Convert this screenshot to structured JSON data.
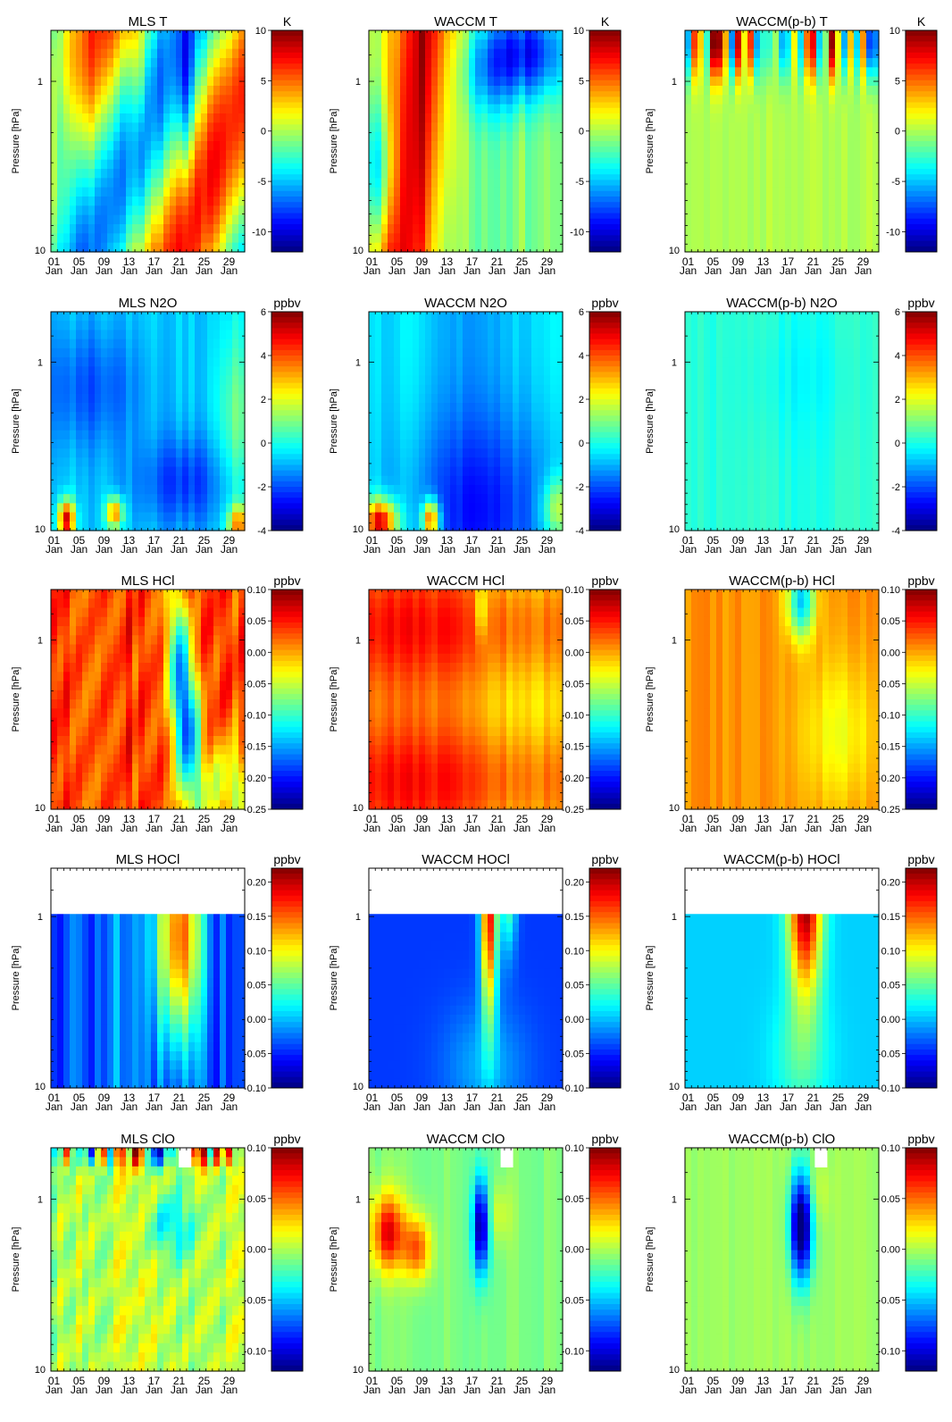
{
  "figure": {
    "colors": {
      "jet": [
        "#00007f",
        "#0000ff",
        "#007fff",
        "#00ffff",
        "#7fff7f",
        "#ffff00",
        "#ff7f00",
        "#ff0000",
        "#7f0000"
      ],
      "missing": "#ffffff"
    }
  },
  "chart_data": [
    {
      "type": "heatmap",
      "title": "MLS T",
      "ylabel": "Pressure [hPa]",
      "unit": "K",
      "clim": [
        -12,
        10
      ],
      "cbar_ticks": [
        "10",
        "5",
        "0",
        "-5",
        "-10"
      ],
      "cbar_values": [
        10,
        5,
        0,
        -5,
        -10
      ],
      "yticks": [
        "1",
        "10"
      ],
      "xticks": [
        "01\nJan",
        "05\nJan",
        "09\nJan",
        "13\nJan",
        "17\nJan",
        "21\nJan",
        "25\nJan",
        "29\nJan"
      ]
    },
    {
      "type": "heatmap",
      "title": "WACCM T",
      "ylabel": "Pressure [hPa]",
      "unit": "K",
      "clim": [
        -12,
        10
      ],
      "cbar_ticks": [
        "10",
        "5",
        "0",
        "-5",
        "-10"
      ],
      "cbar_values": [
        10,
        5,
        0,
        -5,
        -10
      ],
      "yticks": [
        "1",
        "10"
      ],
      "xticks": [
        "01\nJan",
        "05\nJan",
        "09\nJan",
        "13\nJan",
        "17\nJan",
        "21\nJan",
        "25\nJan",
        "29\nJan"
      ]
    },
    {
      "type": "heatmap",
      "title": "WACCM(p-b) T",
      "ylabel": "Pressure [hPa]",
      "unit": "K",
      "clim": [
        -12,
        10
      ],
      "cbar_ticks": [
        "10",
        "5",
        "0",
        "-5",
        "-10"
      ],
      "cbar_values": [
        10,
        5,
        0,
        -5,
        -10
      ],
      "yticks": [
        "1",
        "10"
      ],
      "xticks": [
        "01\nJan",
        "05\nJan",
        "09\nJan",
        "13\nJan",
        "17\nJan",
        "21\nJan",
        "25\nJan",
        "29\nJan"
      ]
    },
    {
      "type": "heatmap",
      "title": "MLS N2O",
      "ylabel": "Pressure [hPa]",
      "unit": "ppbv",
      "clim": [
        -4,
        6
      ],
      "cbar_ticks": [
        "6",
        "4",
        "2",
        "0",
        "-2",
        "-4"
      ],
      "cbar_values": [
        6,
        4,
        2,
        0,
        -2,
        -4
      ],
      "yticks": [
        "1",
        "10"
      ],
      "xticks": [
        "01\nJan",
        "05\nJan",
        "09\nJan",
        "13\nJan",
        "17\nJan",
        "21\nJan",
        "25\nJan",
        "29\nJan"
      ]
    },
    {
      "type": "heatmap",
      "title": "WACCM N2O",
      "ylabel": "Pressure [hPa]",
      "unit": "ppbv",
      "clim": [
        -4,
        6
      ],
      "cbar_ticks": [
        "6",
        "4",
        "2",
        "0",
        "-2",
        "-4"
      ],
      "cbar_values": [
        6,
        4,
        2,
        0,
        -2,
        -4
      ],
      "yticks": [
        "1",
        "10"
      ],
      "xticks": [
        "01\nJan",
        "05\nJan",
        "09\nJan",
        "13\nJan",
        "17\nJan",
        "21\nJan",
        "25\nJan",
        "29\nJan"
      ]
    },
    {
      "type": "heatmap",
      "title": "WACCM(p-b) N2O",
      "ylabel": "Pressure [hPa]",
      "unit": "ppbv",
      "clim": [
        -4,
        6
      ],
      "cbar_ticks": [
        "6",
        "4",
        "2",
        "0",
        "-2",
        "-4"
      ],
      "cbar_values": [
        6,
        4,
        2,
        0,
        -2,
        -4
      ],
      "yticks": [
        "1",
        "10"
      ],
      "xticks": [
        "01\nJan",
        "05\nJan",
        "09\nJan",
        "13\nJan",
        "17\nJan",
        "21\nJan",
        "25\nJan",
        "29\nJan"
      ]
    },
    {
      "type": "heatmap",
      "title": "MLS HCl",
      "ylabel": "Pressure [hPa]",
      "unit": "ppbv",
      "clim": [
        -0.25,
        0.1
      ],
      "cbar_ticks": [
        "0.10",
        "0.05",
        "0.00",
        "-0.05",
        "-0.10",
        "-0.15",
        "-0.20",
        "-0.25"
      ],
      "cbar_values": [
        0.1,
        0.05,
        0,
        -0.05,
        -0.1,
        -0.15,
        -0.2,
        -0.25
      ],
      "yticks": [
        "1",
        "10"
      ],
      "xticks": [
        "01\nJan",
        "05\nJan",
        "09\nJan",
        "13\nJan",
        "17\nJan",
        "21\nJan",
        "25\nJan",
        "29\nJan"
      ]
    },
    {
      "type": "heatmap",
      "title": "WACCM HCl",
      "ylabel": "Pressure [hPa]",
      "unit": "ppbv",
      "clim": [
        -0.25,
        0.1
      ],
      "cbar_ticks": [
        "0.10",
        "0.05",
        "0.00",
        "-0.05",
        "-0.10",
        "-0.15",
        "-0.20",
        "-0.25"
      ],
      "cbar_values": [
        0.1,
        0.05,
        0,
        -0.05,
        -0.1,
        -0.15,
        -0.2,
        -0.25
      ],
      "yticks": [
        "1",
        "10"
      ],
      "xticks": [
        "01\nJan",
        "05\nJan",
        "09\nJan",
        "13\nJan",
        "17\nJan",
        "21\nJan",
        "25\nJan",
        "29\nJan"
      ]
    },
    {
      "type": "heatmap",
      "title": "WACCM(p-b) HCl",
      "ylabel": "Pressure [hPa]",
      "unit": "ppbv",
      "clim": [
        -0.25,
        0.1
      ],
      "cbar_ticks": [
        "0.10",
        "0.05",
        "0.00",
        "-0.05",
        "-0.10",
        "-0.15",
        "-0.20",
        "-0.25"
      ],
      "cbar_values": [
        0.1,
        0.05,
        0,
        -0.05,
        -0.1,
        -0.15,
        -0.2,
        -0.25
      ],
      "yticks": [
        "1",
        "10"
      ],
      "xticks": [
        "01\nJan",
        "05\nJan",
        "09\nJan",
        "13\nJan",
        "17\nJan",
        "21\nJan",
        "25\nJan",
        "29\nJan"
      ]
    },
    {
      "type": "heatmap",
      "title": "MLS HOCl",
      "ylabel": "Pressure [hPa]",
      "unit": "ppbv",
      "clim": [
        -0.1,
        0.22
      ],
      "cbar_ticks": [
        "0.20",
        "0.15",
        "0.10",
        "0.05",
        "0.00",
        "-0.05",
        "-0.10"
      ],
      "cbar_values": [
        0.2,
        0.15,
        0.1,
        0.05,
        0,
        -0.05,
        -0.1
      ],
      "yticks": [
        "1",
        "10"
      ],
      "xticks": [
        "01\nJan",
        "05\nJan",
        "09\nJan",
        "13\nJan",
        "17\nJan",
        "21\nJan",
        "25\nJan",
        "29\nJan"
      ]
    },
    {
      "type": "heatmap",
      "title": "WACCM HOCl",
      "ylabel": "Pressure [hPa]",
      "unit": "ppbv",
      "clim": [
        -0.1,
        0.22
      ],
      "cbar_ticks": [
        "0.20",
        "0.15",
        "0.10",
        "0.05",
        "0.00",
        "-0.05",
        "-0.10"
      ],
      "cbar_values": [
        0.2,
        0.15,
        0.1,
        0.05,
        0,
        -0.05,
        -0.1
      ],
      "yticks": [
        "1",
        "10"
      ],
      "xticks": [
        "01\nJan",
        "05\nJan",
        "09\nJan",
        "13\nJan",
        "17\nJan",
        "21\nJan",
        "25\nJan",
        "29\nJan"
      ]
    },
    {
      "type": "heatmap",
      "title": "WACCM(p-b) HOCl",
      "ylabel": "Pressure [hPa]",
      "unit": "ppbv",
      "clim": [
        -0.1,
        0.22
      ],
      "cbar_ticks": [
        "0.20",
        "0.15",
        "0.10",
        "0.05",
        "0.00",
        "-0.05",
        "-0.10"
      ],
      "cbar_values": [
        0.2,
        0.15,
        0.1,
        0.05,
        0,
        -0.05,
        -0.1
      ],
      "yticks": [
        "1",
        "10"
      ],
      "xticks": [
        "01\nJan",
        "05\nJan",
        "09\nJan",
        "13\nJan",
        "17\nJan",
        "21\nJan",
        "25\nJan",
        "29\nJan"
      ]
    },
    {
      "type": "heatmap",
      "title": "MLS ClO",
      "ylabel": "Pressure [hPa]",
      "unit": "ppbv",
      "clim": [
        -0.12,
        0.1
      ],
      "cbar_ticks": [
        "0.10",
        "0.05",
        "0.00",
        "-0.05",
        "-0.10"
      ],
      "cbar_values": [
        0.1,
        0.05,
        0,
        -0.05,
        -0.1
      ],
      "yticks": [
        "1",
        "10"
      ],
      "xticks": [
        "01\nJan",
        "05\nJan",
        "09\nJan",
        "13\nJan",
        "17\nJan",
        "21\nJan",
        "25\nJan",
        "29\nJan"
      ]
    },
    {
      "type": "heatmap",
      "title": "WACCM ClO",
      "ylabel": "Pressure [hPa]",
      "unit": "ppbv",
      "clim": [
        -0.12,
        0.1
      ],
      "cbar_ticks": [
        "0.10",
        "0.05",
        "0.00",
        "-0.05",
        "-0.10"
      ],
      "cbar_values": [
        0.1,
        0.05,
        0,
        -0.05,
        -0.1
      ],
      "yticks": [
        "1",
        "10"
      ],
      "xticks": [
        "01\nJan",
        "05\nJan",
        "09\nJan",
        "13\nJan",
        "17\nJan",
        "21\nJan",
        "25\nJan",
        "29\nJan"
      ]
    },
    {
      "type": "heatmap",
      "title": "WACCM(p-b) ClO",
      "ylabel": "Pressure [hPa]",
      "unit": "ppbv",
      "clim": [
        -0.12,
        0.1
      ],
      "cbar_ticks": [
        "0.10",
        "0.05",
        "0.00",
        "-0.05",
        "-0.10"
      ],
      "cbar_values": [
        0.1,
        0.05,
        0,
        -0.05,
        -0.1
      ],
      "yticks": [
        "1",
        "10"
      ],
      "xticks": [
        "01\nJan",
        "05\nJan",
        "09\nJan",
        "13\nJan",
        "17\nJan",
        "21\nJan",
        "25\nJan",
        "29\nJan"
      ]
    }
  ]
}
